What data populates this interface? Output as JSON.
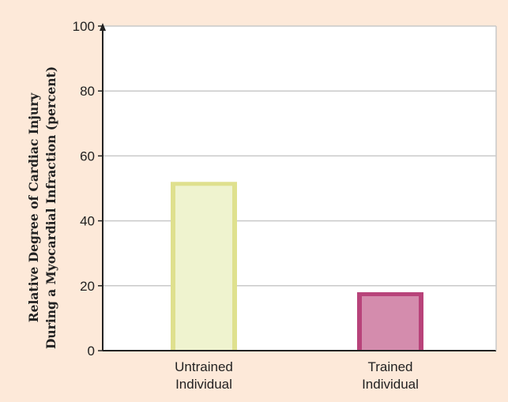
{
  "chart_data": {
    "type": "bar",
    "title": "",
    "xlabel": "",
    "ylabel_lines": [
      "Relative Degree of Cardiac Injury",
      "During a Myocardial Infraction (percent)"
    ],
    "categories": [
      [
        "Untrained",
        "Individual"
      ],
      [
        "Trained",
        "Individual"
      ]
    ],
    "values": [
      52,
      18
    ],
    "ylim": [
      0,
      100
    ],
    "yticks": [
      "0",
      "20",
      "40",
      "60",
      "80",
      "100"
    ],
    "grid": true,
    "legend": "none",
    "colors": {
      "background": "#fde9d9",
      "plot_background": "#ffffff",
      "grid": "#c9c9c9",
      "axis": "#222222",
      "bar_fills": [
        "#eff3cf",
        "#d48cad"
      ],
      "bar_edges": [
        "#dfe08e",
        "#b8437a"
      ]
    }
  }
}
